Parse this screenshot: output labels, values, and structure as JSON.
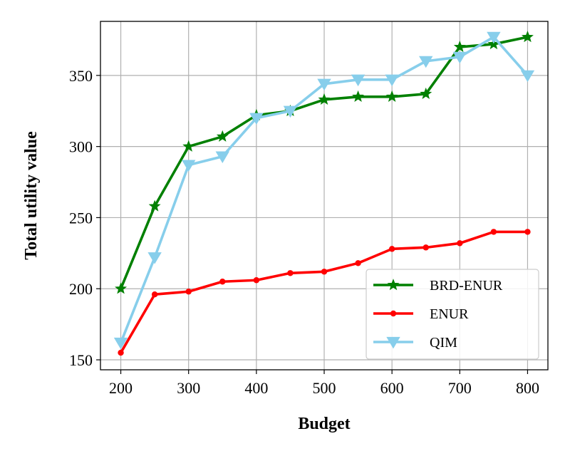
{
  "chart_data": {
    "type": "line",
    "title": "",
    "xlabel": "Budget",
    "ylabel": "Total utility value",
    "xlim": [
      170,
      830
    ],
    "ylim": [
      143,
      388
    ],
    "xticks": [
      200,
      300,
      400,
      500,
      600,
      700,
      800
    ],
    "yticks": [
      150,
      200,
      250,
      300,
      350
    ],
    "grid": true,
    "legend_position": "bottom-right",
    "x": [
      200,
      250,
      300,
      350,
      400,
      450,
      500,
      550,
      600,
      650,
      700,
      750,
      800
    ],
    "series": [
      {
        "name": "BRD-ENUR",
        "color": "#008000",
        "marker": "star",
        "values": [
          200,
          258,
          300,
          307,
          322,
          325,
          333,
          335,
          335,
          337,
          370,
          372,
          377
        ]
      },
      {
        "name": "ENUR",
        "color": "#ff0000",
        "marker": "circle",
        "values": [
          155,
          196,
          198,
          205,
          206,
          211,
          212,
          218,
          228,
          229,
          232,
          240,
          240
        ]
      },
      {
        "name": "QIM",
        "color": "#87ceeb",
        "marker": "triangle-down",
        "values": [
          162,
          222,
          287,
          293,
          320,
          325,
          344,
          347,
          347,
          360,
          363,
          377,
          350
        ]
      }
    ]
  }
}
